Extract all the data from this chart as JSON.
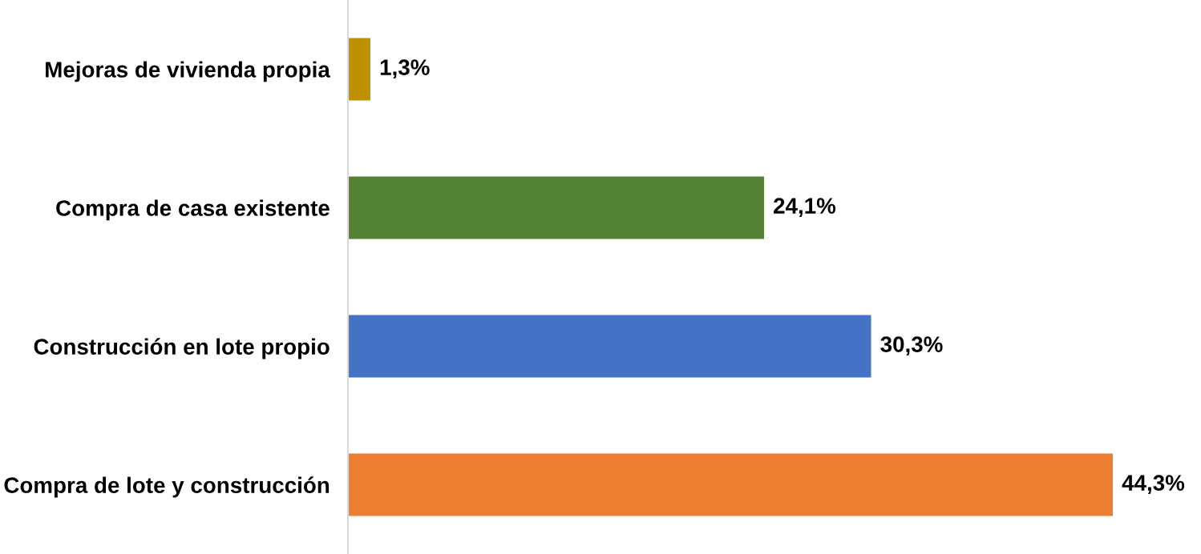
{
  "chart_data": {
    "type": "bar",
    "orientation": "horizontal",
    "categories": [
      "Mejoras de vivienda propia",
      "Compra de casa existente",
      "Construcción en lote propio",
      "Compra de lote y construcción"
    ],
    "values": [
      1.3,
      24.1,
      30.3,
      44.3
    ],
    "colors": [
      "#bf9000",
      "#548235",
      "#4472c4",
      "#ed7d31"
    ],
    "value_labels": [
      "1,3%",
      "24,1%",
      "30,3%",
      "44,3%"
    ],
    "grid": false,
    "legend": false
  }
}
